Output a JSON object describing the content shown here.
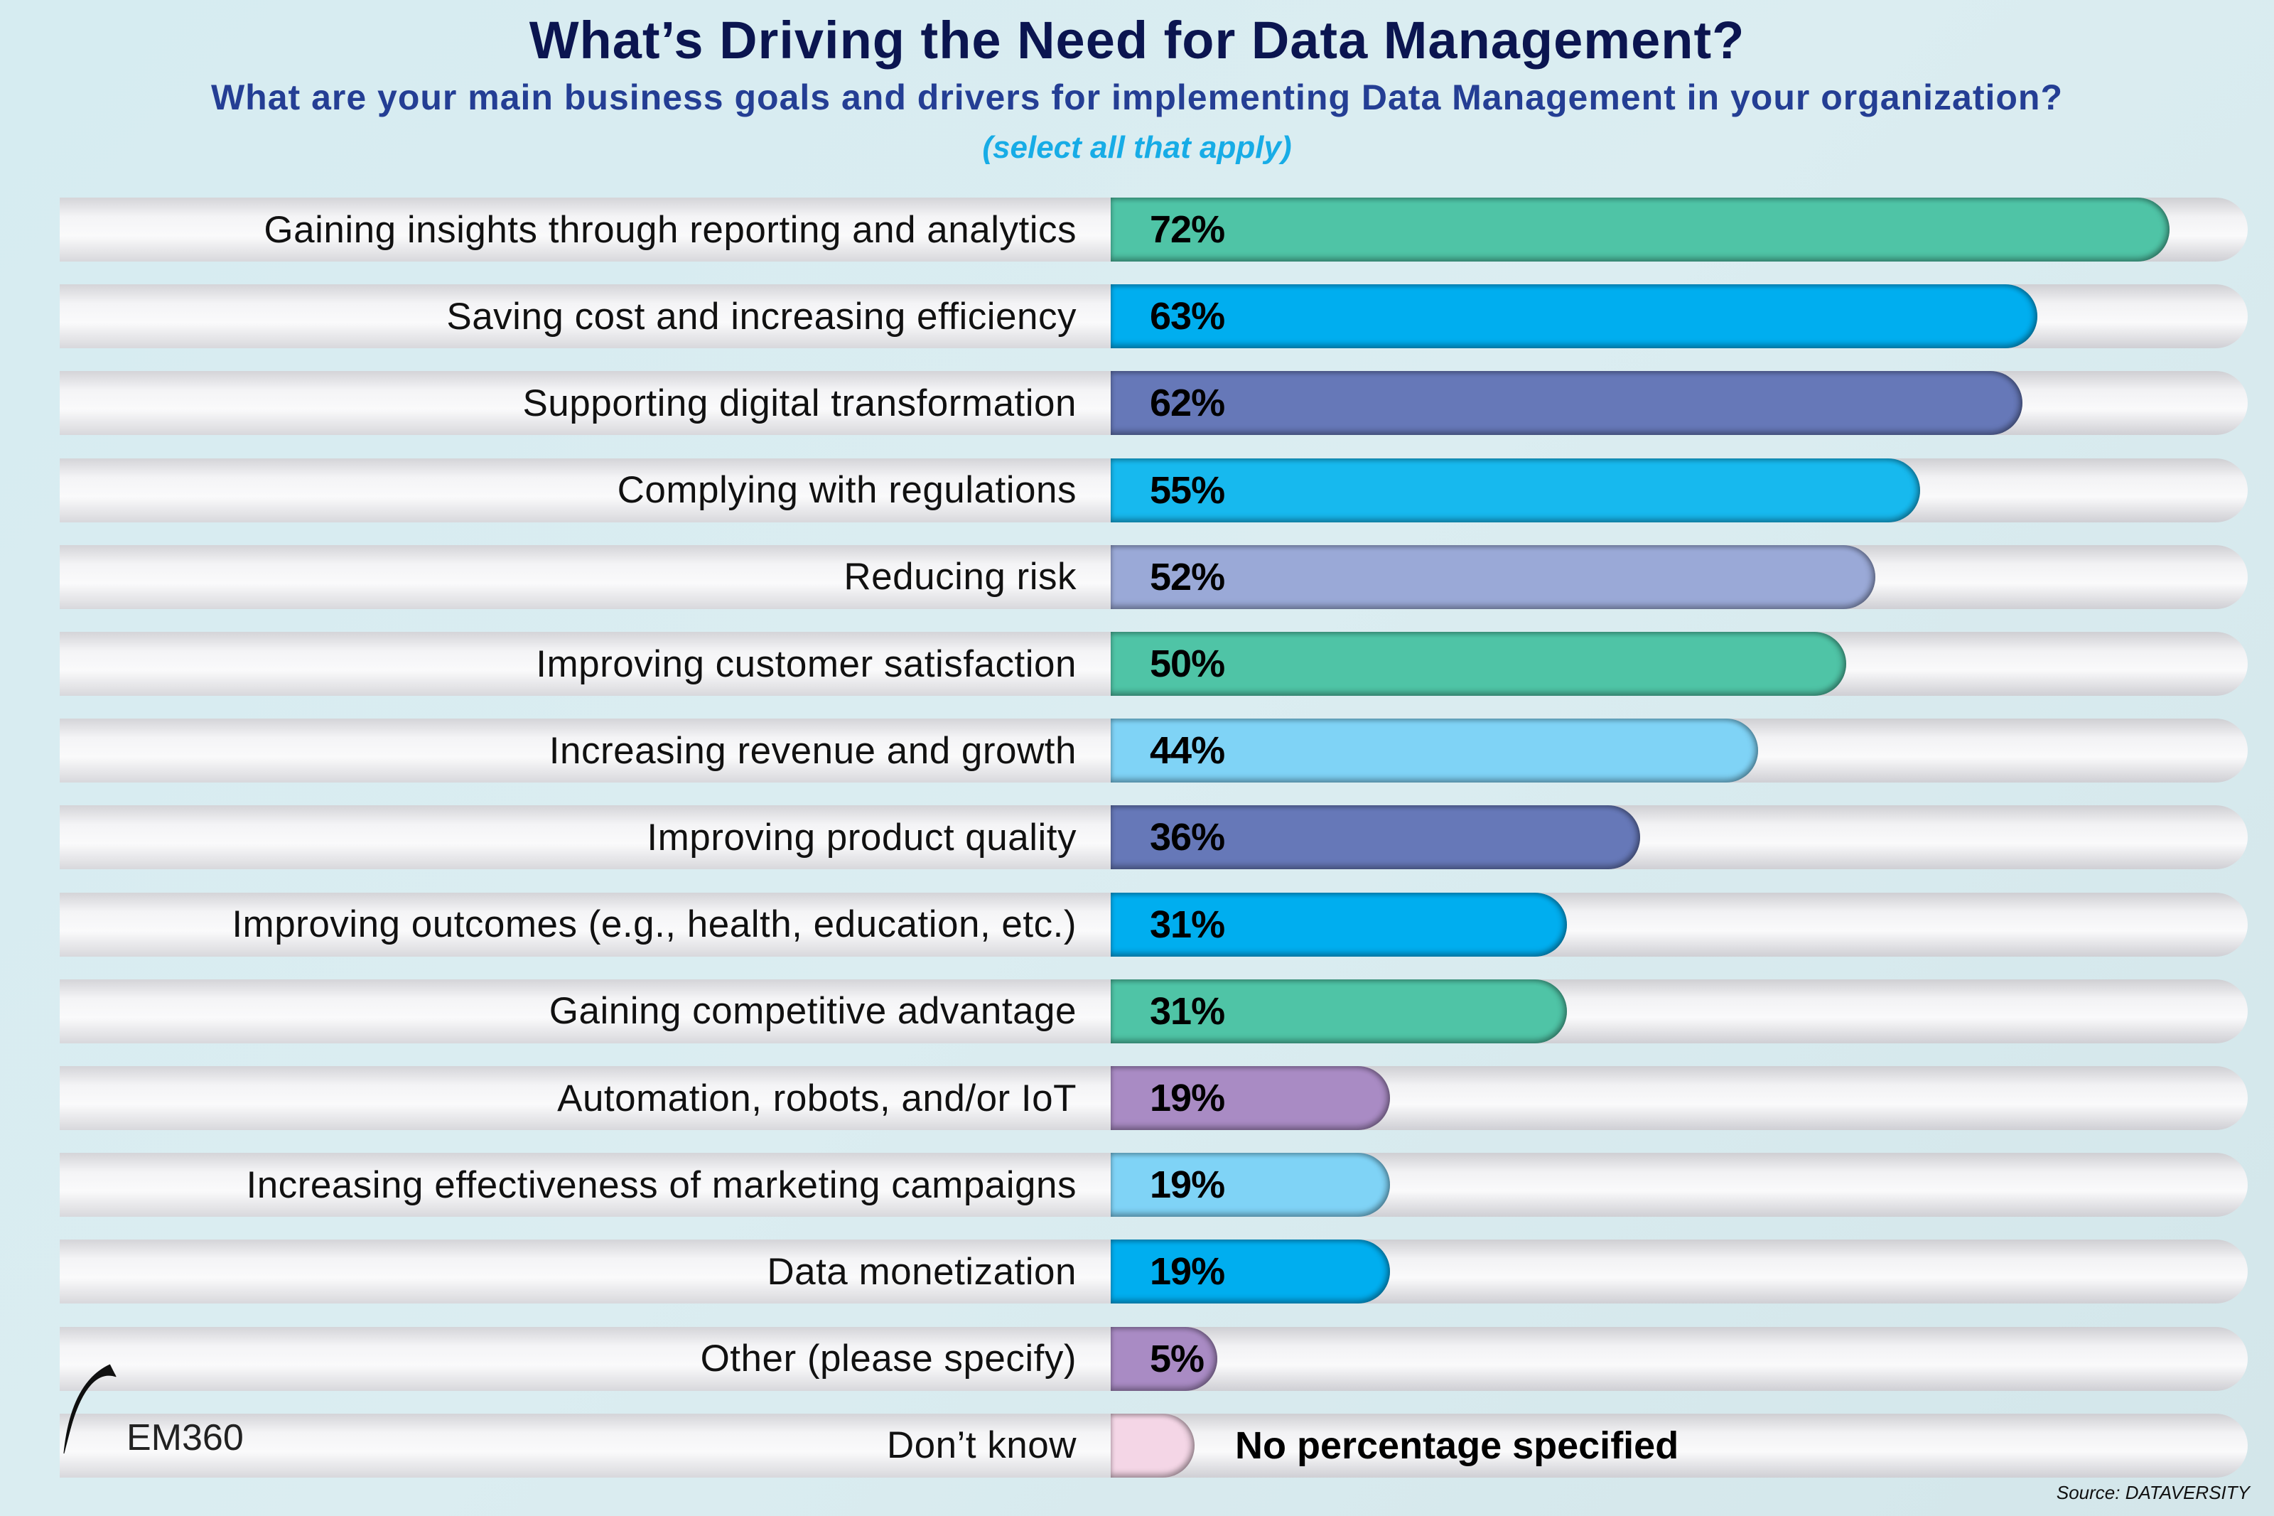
{
  "chart_data": {
    "type": "bar",
    "orientation": "horizontal",
    "title": "What’s Driving the Need for Data Management?",
    "subtitle": "What are your main business goals and drivers for implementing Data Management in your organization?",
    "note": "(select all that apply)",
    "categories": [
      "Gaining insights through reporting and analytics",
      "Saving cost and increasing efficiency",
      "Supporting digital transformation",
      "Complying with regulations",
      "Reducing risk",
      "Improving customer satisfaction",
      "Increasing revenue and growth",
      "Improving product quality",
      "Improving outcomes (e.g., health, education, etc.)",
      "Gaining competitive advantage",
      "Automation, robots, and/or IoT",
      "Increasing effectiveness of marketing campaigns",
      "Data monetization",
      "Other (please specify)",
      "Don’t know"
    ],
    "values": [
      72,
      63,
      62,
      55,
      52,
      50,
      44,
      36,
      31,
      31,
      19,
      19,
      19,
      5,
      null
    ],
    "value_labels": [
      "72%",
      "63%",
      "62%",
      "55%",
      "52%",
      "50%",
      "44%",
      "36%",
      "31%",
      "31%",
      "19%",
      "19%",
      "19%",
      "5%",
      ""
    ],
    "colors": [
      "#4fc4a6",
      "#00aeef",
      "#6678b8",
      "#17b9ee",
      "#9aa9d7",
      "#4fc4a6",
      "#7fd3f6",
      "#6678b8",
      "#00aeef",
      "#4fc4a6",
      "#a98bc4",
      "#7fd3f6",
      "#00aeef",
      "#a98bc4",
      "#f4d6e6"
    ],
    "no_value_text": "No percentage specified",
    "xlim": [
      0,
      100
    ],
    "grid": false,
    "legend": "none"
  },
  "footer": {
    "source": "Source: DATAVERSITY",
    "logo_text": "EM360"
  }
}
